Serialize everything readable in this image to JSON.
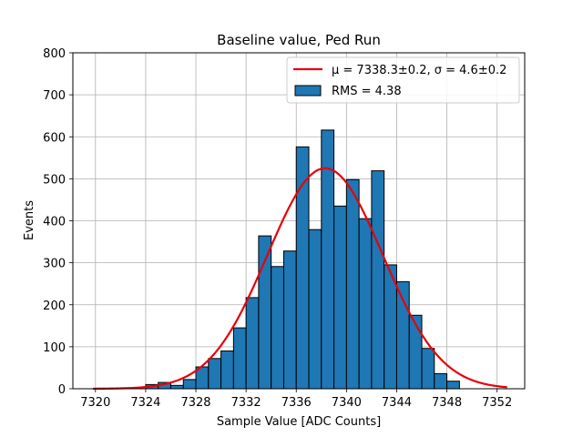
{
  "chart_data": {
    "type": "bar",
    "title": "Baseline value, Ped Run",
    "xlabel": "Sample Value [ADC Counts]",
    "ylabel": "Events",
    "xlim": [
      7318.2,
      7354.2
    ],
    "ylim": [
      0,
      800
    ],
    "xticks": [
      7320,
      7324,
      7328,
      7332,
      7336,
      7340,
      7344,
      7348,
      7352
    ],
    "yticks": [
      0,
      100,
      200,
      300,
      400,
      500,
      600,
      700,
      800
    ],
    "grid": true,
    "legend_position": "top-right",
    "histogram": {
      "bin_edges": [
        7324.0,
        7325.0,
        7326.0,
        7327.0,
        7328.0,
        7329.0,
        7330.0,
        7331.0,
        7332.0,
        7333.0,
        7334.0,
        7335.0,
        7336.0,
        7337.0,
        7338.0,
        7339.0,
        7340.0,
        7341.0,
        7342.0,
        7343.0,
        7344.0,
        7345.0,
        7346.0,
        7347.0,
        7348.0,
        7349.0
      ],
      "counts": [
        10,
        15,
        8,
        22,
        52,
        72,
        90,
        145,
        217,
        364,
        291,
        328,
        576,
        379,
        616,
        435,
        498,
        405,
        519,
        295,
        255,
        175,
        96,
        36,
        18,
        8
      ],
      "color": "#1f77b4",
      "edge_color": "#000000",
      "legend_label": "RMS = 4.38"
    },
    "fit": {
      "type": "gaussian",
      "mu": 7338.3,
      "sigma": 4.6,
      "amplitude": 525,
      "x_range": [
        7319.8,
        7352.8
      ],
      "color": "#e8000b",
      "legend_label": "μ = 7338.3±0.2, σ = 4.6±0.2"
    }
  }
}
